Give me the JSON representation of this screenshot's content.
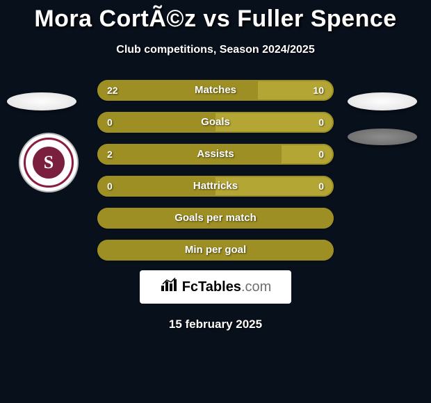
{
  "title": "Mora CortÃ©z vs Fuller Spence",
  "subtitle": "Club competitions, Season 2024/2025",
  "date": "15 february 2025",
  "footer_brand": "FcTables",
  "footer_suffix": ".com",
  "badge_letter": "S",
  "colors": {
    "bg": "#08101c",
    "left_bar": "#9d8f24",
    "right_bar": "#b4a635",
    "border": "#9d8f24",
    "empty_border": "#9d8f24"
  },
  "stats": [
    {
      "label": "Matches",
      "left_val": "22",
      "right_val": "10",
      "left_pct": 68,
      "right_pct": 32,
      "show_vals": true
    },
    {
      "label": "Goals",
      "left_val": "0",
      "right_val": "0",
      "left_pct": 50,
      "right_pct": 50,
      "show_vals": true
    },
    {
      "label": "Assists",
      "left_val": "2",
      "right_val": "0",
      "left_pct": 78,
      "right_pct": 22,
      "show_vals": true
    },
    {
      "label": "Hattricks",
      "left_val": "0",
      "right_val": "0",
      "left_pct": 50,
      "right_pct": 50,
      "show_vals": true
    },
    {
      "label": "Goals per match",
      "left_val": "",
      "right_val": "",
      "left_pct": 100,
      "right_pct": 0,
      "show_vals": false
    },
    {
      "label": "Min per goal",
      "left_val": "",
      "right_val": "",
      "left_pct": 100,
      "right_pct": 0,
      "show_vals": false
    }
  ]
}
